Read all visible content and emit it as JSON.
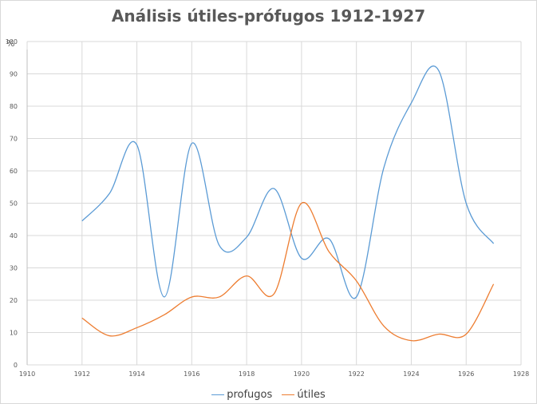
{
  "chart_data": {
    "type": "line",
    "title": "Análisis útiles-prófugos 1912-1927",
    "ylabel": "%",
    "xlabel": "",
    "xlim": [
      1910,
      1928
    ],
    "ylim": [
      0,
      100
    ],
    "x_ticks": [
      "1910",
      "1912",
      "1914",
      "1916",
      "1918",
      "1920",
      "1922",
      "1924",
      "1926",
      "1928"
    ],
    "y_ticks": [
      "0",
      "10",
      "20",
      "30",
      "40",
      "50",
      "60",
      "70",
      "80",
      "90",
      "100"
    ],
    "grid": true,
    "legend": "bottom",
    "x": [
      1912,
      1913,
      1914,
      1915,
      1916,
      1917,
      1918,
      1919,
      1920,
      1921,
      1922,
      1923,
      1924,
      1925,
      1926,
      1927
    ],
    "series": [
      {
        "name": "profugos",
        "color": "#5b9bd5",
        "values": [
          44.5,
          53,
          68,
          21,
          68.5,
          37,
          39.5,
          54.5,
          33,
          39,
          21,
          61,
          81,
          91,
          50,
          37.5
        ]
      },
      {
        "name": "útiles",
        "color": "#ed7d31",
        "values": [
          14.5,
          9,
          11.5,
          15.5,
          21,
          21,
          27.5,
          22,
          50,
          35,
          26,
          12,
          7.5,
          9.5,
          9.5,
          25
        ]
      }
    ]
  }
}
